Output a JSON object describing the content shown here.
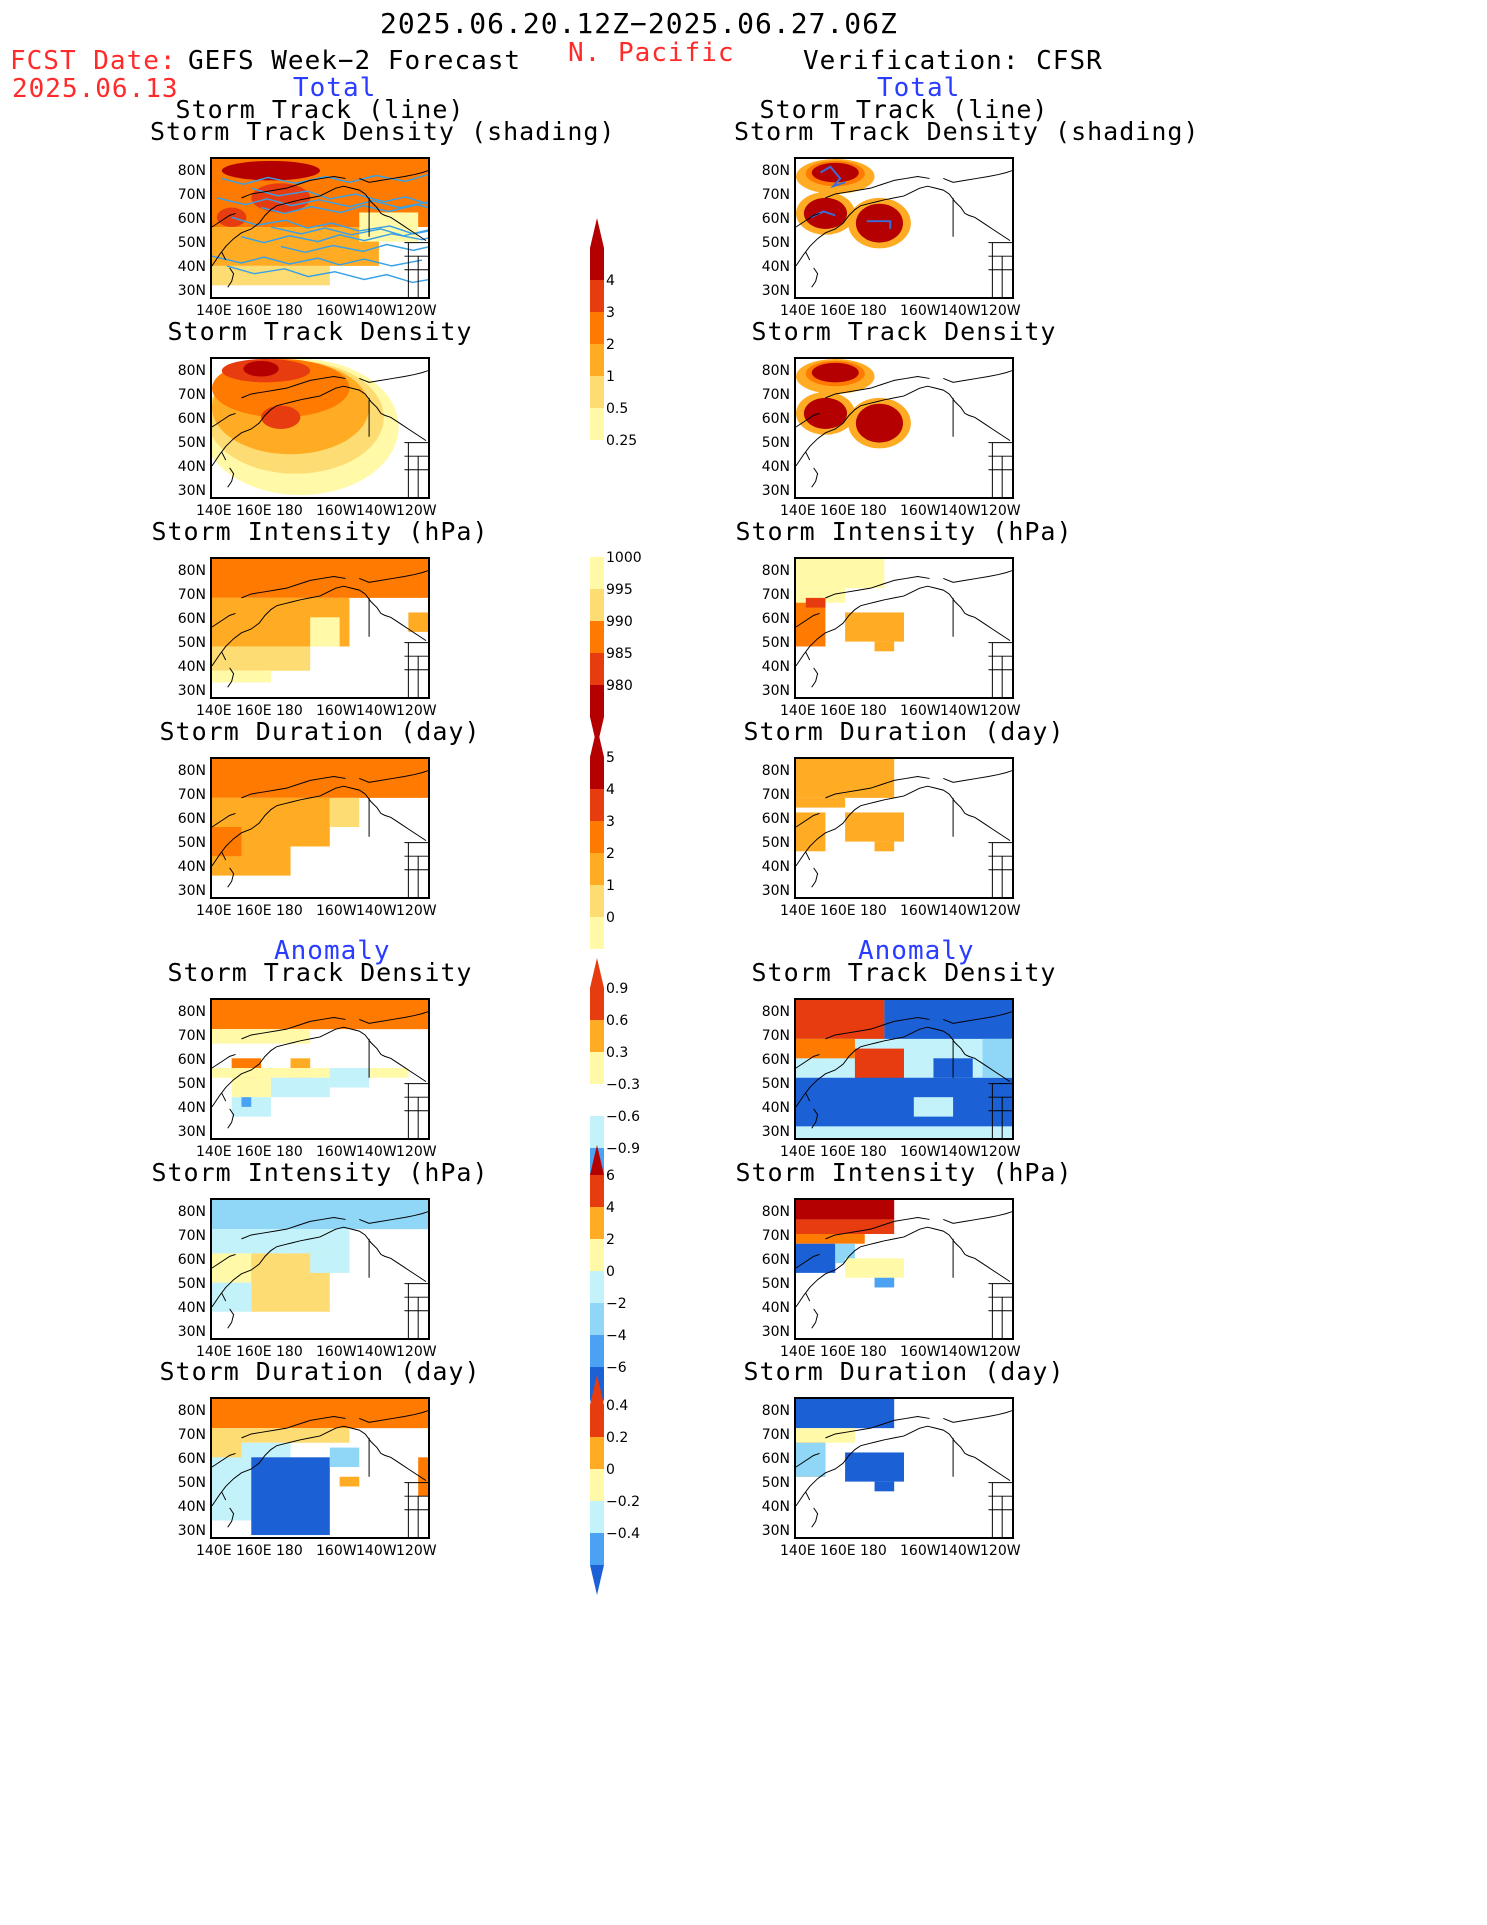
{
  "header": {
    "period": "2025.06.20.12Z−2025.06.27.06Z",
    "region": "N. Pacific",
    "fcst_label": "FCST Date:",
    "fcst_date": "2025.06.13",
    "left_title": "GEFS Week−2 Forecast",
    "right_title": "Verification: CFSR",
    "total_label": "Total",
    "anomaly_label": "Anomaly"
  },
  "panels": {
    "track_line_title_1": "Storm Track (line)",
    "track_line_title_2": "Storm Track Density (shading)",
    "density_title": "Storm Track Density",
    "intensity_title": "Storm Intensity (hPa)",
    "duration_title": "Storm Duration (day)"
  },
  "axes": {
    "lat_labels": [
      "80N",
      "70N",
      "60N",
      "50N",
      "40N",
      "30N"
    ],
    "lon_labels": [
      "140E",
      "160E",
      "180",
      "160W",
      "140W",
      "120W"
    ]
  },
  "colorbars": {
    "density_total": [
      "4",
      "3",
      "2",
      "1",
      "0.5",
      "0.25"
    ],
    "intensity_total": [
      "1000",
      "995",
      "990",
      "985",
      "980"
    ],
    "duration_total": [
      "5",
      "4",
      "3",
      "2",
      "1",
      "0"
    ],
    "density_anom": [
      "0.9",
      "0.6",
      "0.3",
      "−0.3",
      "−0.6",
      "−0.9"
    ],
    "intensity_anom": [
      "6",
      "4",
      "2",
      "0",
      "−2",
      "−4",
      "−6"
    ],
    "duration_anom": [
      "0.4",
      "0.2",
      "0",
      "−0.2",
      "−0.4"
    ]
  },
  "colors": {
    "warm": [
      "#fff9a8",
      "#fddc73",
      "#ffac24",
      "#ff7a00",
      "#e63c0f",
      "#b40000"
    ],
    "cool": [
      "#c4f2fb",
      "#8fd6f7",
      "#4ca2f2",
      "#1c60d6"
    ],
    "track_line": "#3aa0e6"
  }
}
